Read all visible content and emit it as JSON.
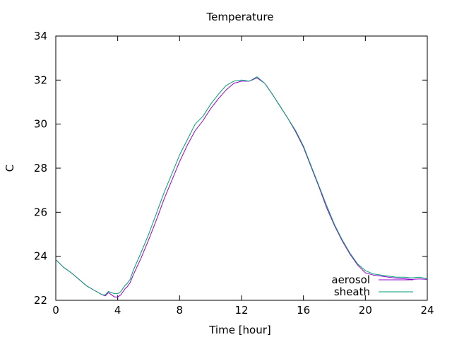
{
  "chart_data": {
    "type": "line",
    "title": "Temperature",
    "xlabel": "Time [hour]",
    "ylabel": "C",
    "xlim": [
      0,
      24
    ],
    "ylim": [
      22,
      34
    ],
    "xticks": [
      0,
      4,
      8,
      12,
      16,
      20,
      24
    ],
    "yticks": [
      22,
      24,
      26,
      28,
      30,
      32,
      34
    ],
    "grid": false,
    "legend_position": "bottom-right",
    "series": [
      {
        "name": "aerosol",
        "color": "#9400d3",
        "x": [
          0,
          0.5,
          1,
          1.5,
          2,
          2.5,
          3,
          3.2,
          3.4,
          3.6,
          3.8,
          4,
          4.2,
          4.4,
          4.5,
          4.6,
          4.8,
          5,
          5.5,
          6,
          6.5,
          7,
          7.5,
          8,
          8.5,
          9,
          9.5,
          10,
          10.5,
          11,
          11.5,
          12,
          12.5,
          13,
          13.5,
          14,
          14.5,
          15,
          15.5,
          16,
          16.5,
          17,
          17.5,
          18,
          18.5,
          19,
          19.5,
          20,
          20.5,
          21,
          21.5,
          22,
          22.5,
          23,
          23.5,
          24
        ],
        "y": [
          23.85,
          23.5,
          23.25,
          22.95,
          22.65,
          22.45,
          22.25,
          22.2,
          22.35,
          22.25,
          22.15,
          22.15,
          22.25,
          22.45,
          22.55,
          22.6,
          22.8,
          23.15,
          23.9,
          24.75,
          25.65,
          26.6,
          27.45,
          28.3,
          29.05,
          29.7,
          30.15,
          30.7,
          31.15,
          31.55,
          31.85,
          31.95,
          31.95,
          32.1,
          31.85,
          31.35,
          30.8,
          30.25,
          29.65,
          28.95,
          28.05,
          27.15,
          26.2,
          25.4,
          24.7,
          24.1,
          23.6,
          23.25,
          23.15,
          23.1,
          23.05,
          23.0,
          22.98,
          22.95,
          22.97,
          22.95
        ]
      },
      {
        "name": "sheath",
        "color": "#009e73",
        "x": [
          0,
          0.5,
          1,
          1.5,
          2,
          2.5,
          3,
          3.2,
          3.4,
          3.6,
          3.8,
          4,
          4.2,
          4.4,
          4.5,
          4.6,
          4.8,
          5,
          5.5,
          6,
          6.5,
          7,
          7.5,
          8,
          8.5,
          9,
          9.5,
          10,
          10.5,
          11,
          11.5,
          12,
          12.5,
          13,
          13.5,
          14,
          14.5,
          15,
          15.5,
          16,
          16.5,
          17,
          17.5,
          18,
          18.5,
          19,
          19.5,
          20,
          20.5,
          21,
          21.5,
          22,
          22.5,
          23,
          23.5,
          24
        ],
        "y": [
          23.85,
          23.5,
          23.25,
          22.95,
          22.65,
          22.45,
          22.25,
          22.25,
          22.4,
          22.35,
          22.3,
          22.3,
          22.4,
          22.6,
          22.7,
          22.75,
          22.95,
          23.35,
          24.15,
          25.0,
          25.95,
          26.9,
          27.75,
          28.6,
          29.3,
          30.0,
          30.35,
          30.9,
          31.35,
          31.75,
          31.95,
          32.0,
          31.95,
          32.15,
          31.85,
          31.35,
          30.8,
          30.25,
          29.7,
          29.0,
          28.1,
          27.2,
          26.3,
          25.45,
          24.75,
          24.15,
          23.65,
          23.35,
          23.2,
          23.15,
          23.1,
          23.05,
          23.05,
          23.02,
          23.05,
          22.98
        ]
      }
    ]
  }
}
